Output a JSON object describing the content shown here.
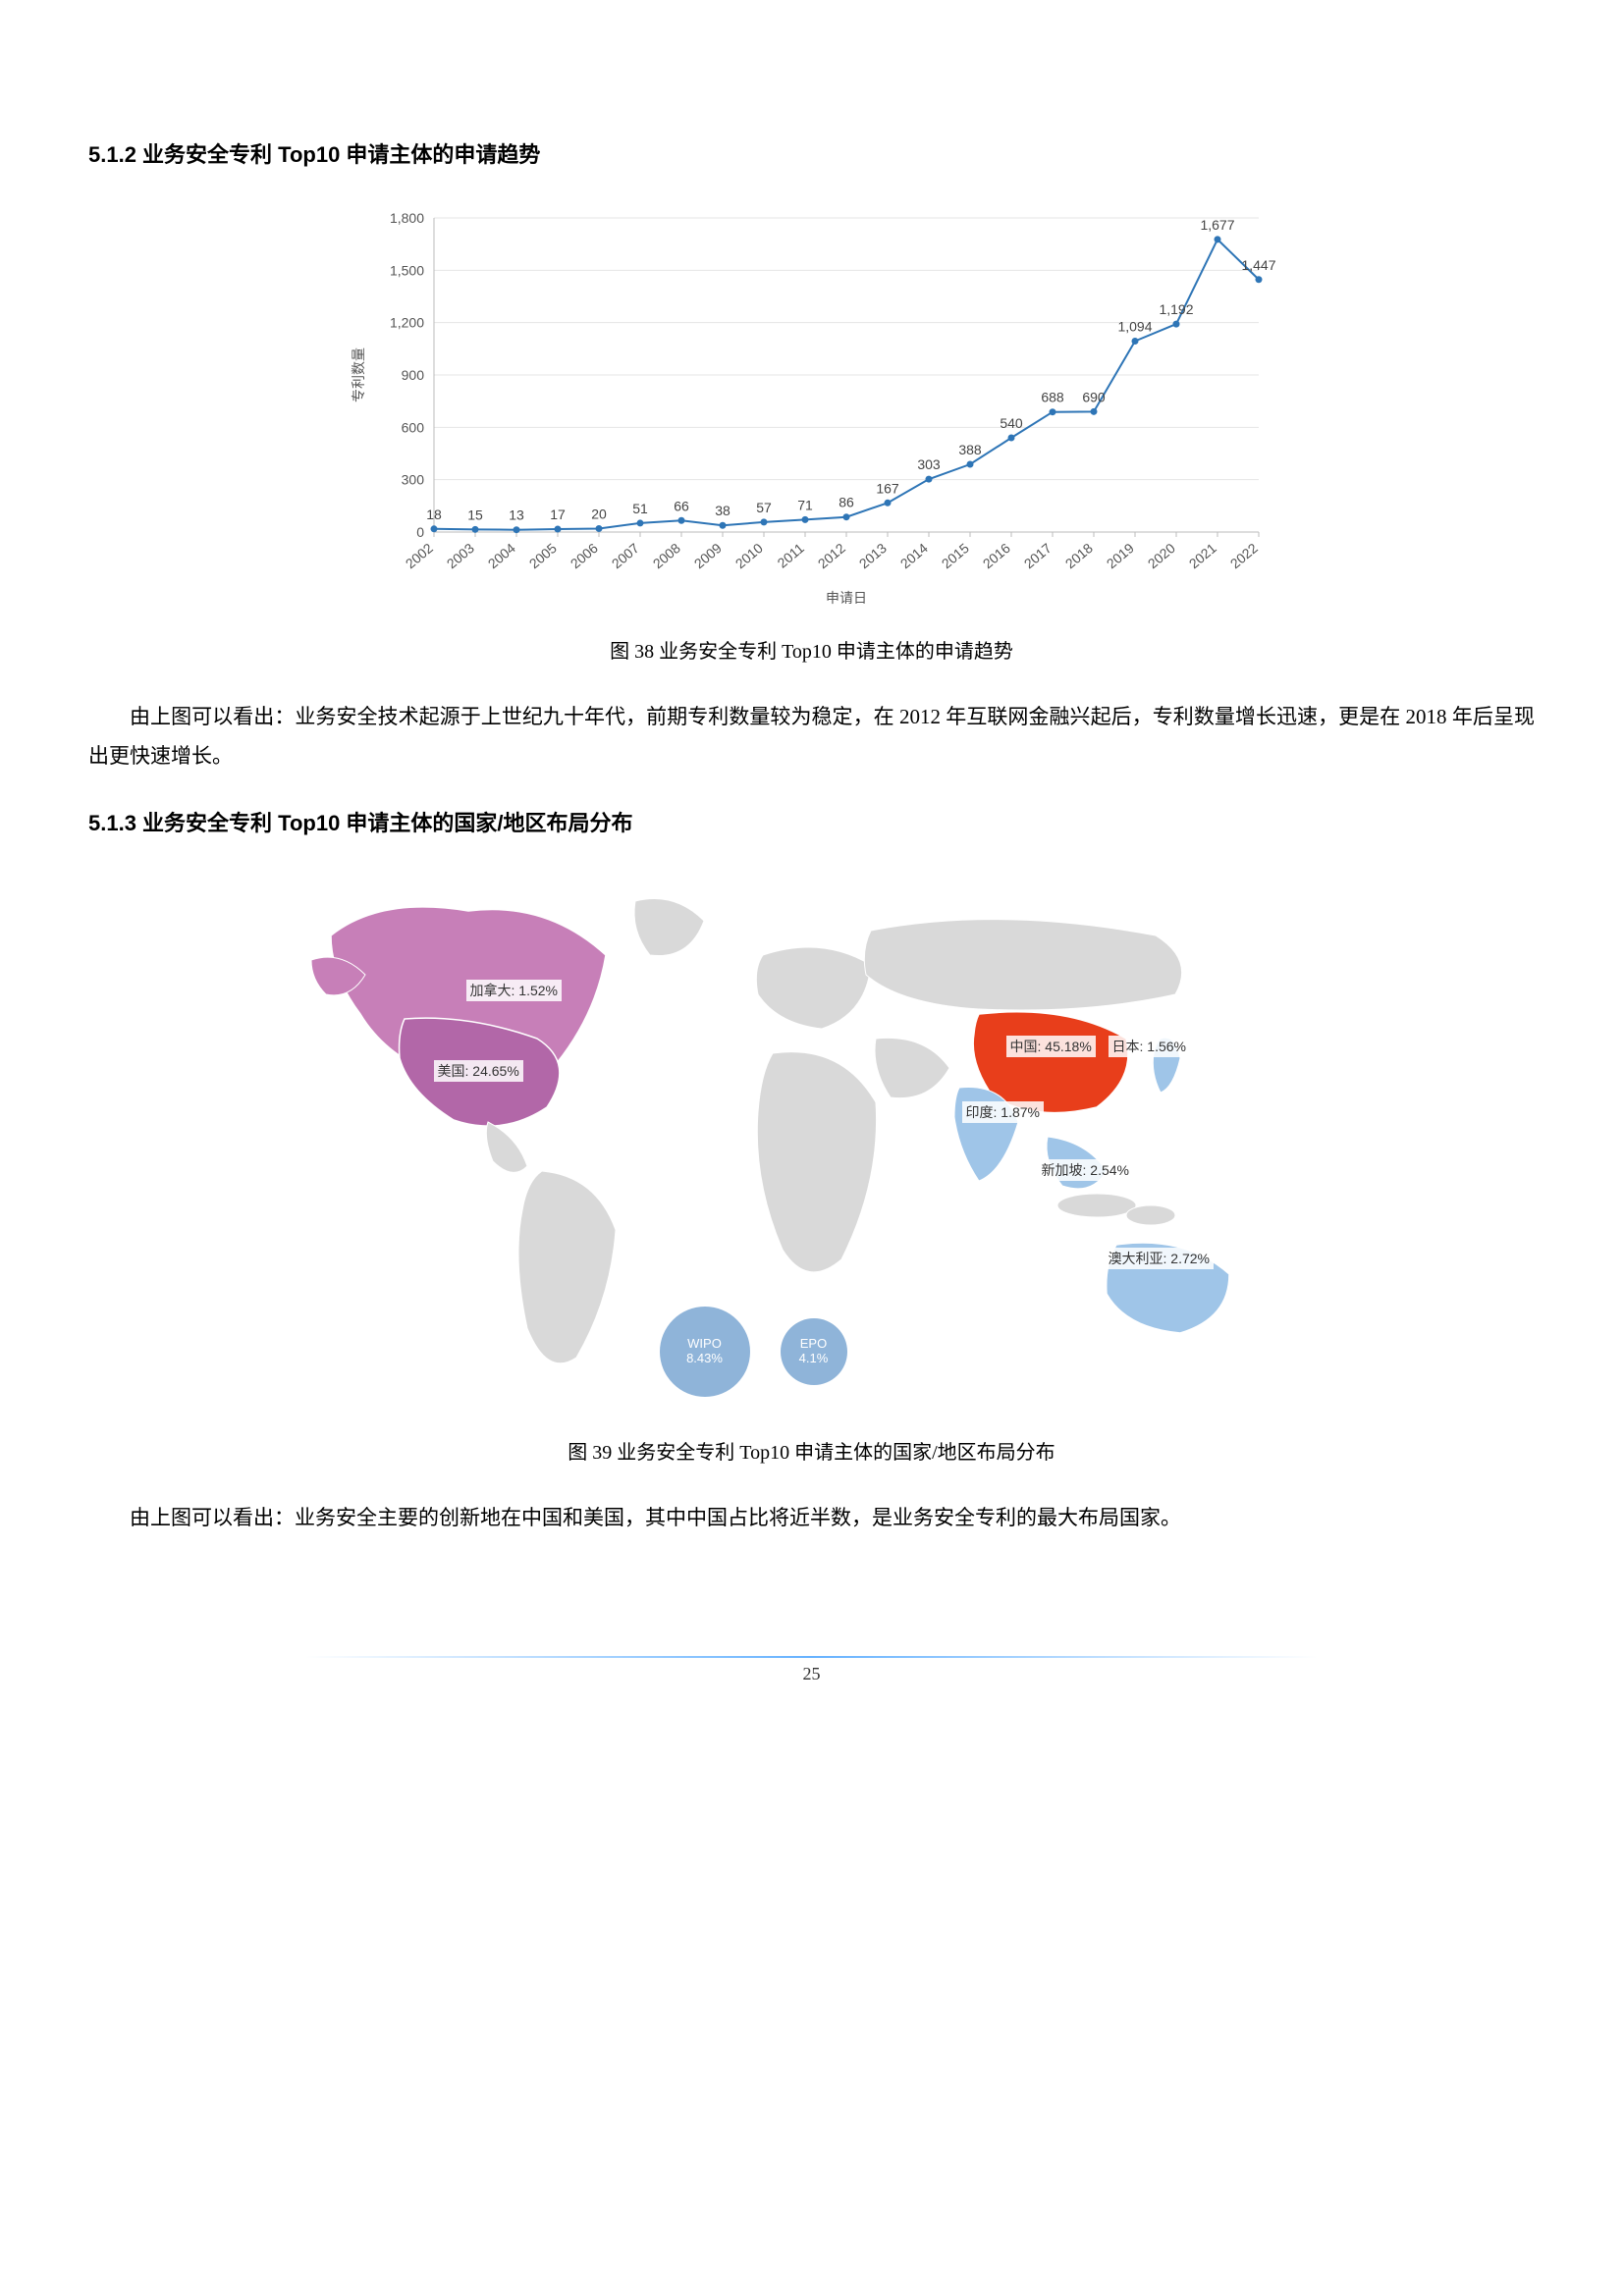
{
  "section512": {
    "heading": "5.1.2 业务安全专利 Top10 申请主体的申请趋势",
    "caption": "图 38 业务安全专利 Top10 申请主体的申请趋势",
    "paragraph": "由上图可以看出：业务安全技术起源于上世纪九十年代，前期专利数量较为稳定，在 2012 年互联网金融兴起后，专利数量增长迅速，更是在 2018 年后呈现出更快速增长。",
    "chart": {
      "type": "line",
      "x_axis_label": "申请日",
      "y_axis_label": "专利数量",
      "years": [
        "2002",
        "2003",
        "2004",
        "2005",
        "2006",
        "2007",
        "2008",
        "2009",
        "2010",
        "2011",
        "2012",
        "2013",
        "2014",
        "2015",
        "2016",
        "2017",
        "2018",
        "2019",
        "2020",
        "2021",
        "2022"
      ],
      "values": [
        18,
        15,
        13,
        17,
        20,
        51,
        66,
        38,
        57,
        71,
        86,
        167,
        303,
        388,
        540,
        688,
        690,
        1094,
        1192,
        1677,
        1447
      ],
      "y_ticks": [
        0,
        300,
        600,
        900,
        1200,
        1500,
        1800
      ],
      "ylim": [
        0,
        1800
      ],
      "line_color": "#2e75b6",
      "marker_color": "#2e75b6",
      "marker_size": 3.5,
      "line_width": 2,
      "grid_color": "#e5e5e5",
      "axis_color": "#bbbbbb",
      "tick_fontsize": 14,
      "value_fontsize": 14,
      "axis_label_fontsize": 14,
      "background": "#ffffff"
    }
  },
  "section513": {
    "heading": "5.1.3 业务安全专利 Top10 申请主体的国家/地区布局分布",
    "caption": "图 39 业务安全专利 Top10 申请主体的国家/地区布局分布",
    "paragraph": "由上图可以看出：业务安全主要的创新地在中国和美国，其中中国占比将近半数，是业务安全专利的最大布局国家。",
    "map": {
      "type": "choropleth",
      "base_land_color": "#d9d9d9",
      "ocean_color": "#ffffff",
      "stroke_color": "#ffffff",
      "highlighted": [
        {
          "key": "canada",
          "label": "加拿大: 1.52%",
          "value": 1.52,
          "fill": "#c77fb8"
        },
        {
          "key": "usa",
          "label": "美国: 24.65%",
          "value": 24.65,
          "fill": "#b267a8"
        },
        {
          "key": "china",
          "label": "中国: 45.18%",
          "value": 45.18,
          "fill": "#e83e1b"
        },
        {
          "key": "japan",
          "label": "日本: 1.56%",
          "value": 1.56,
          "fill": "#9fc5e8"
        },
        {
          "key": "india",
          "label": "印度: 1.87%",
          "value": 1.87,
          "fill": "#9fc5e8"
        },
        {
          "key": "singapore",
          "label": "新加坡: 2.54%",
          "value": 2.54,
          "fill": "#9fc5e8"
        },
        {
          "key": "australia",
          "label": "澳大利亚: 2.72%",
          "value": 2.72,
          "fill": "#9fc5e8"
        }
      ],
      "bubbles": [
        {
          "key": "wipo",
          "label_top": "WIPO",
          "label_bottom": "8.43%",
          "value": 8.43,
          "fill": "#8fb4d9",
          "radius": 46
        },
        {
          "key": "epo",
          "label_top": "EPO",
          "label_bottom": "4.1%",
          "value": 4.1,
          "fill": "#8fb4d9",
          "radius": 34
        }
      ]
    }
  },
  "page_number": "25"
}
